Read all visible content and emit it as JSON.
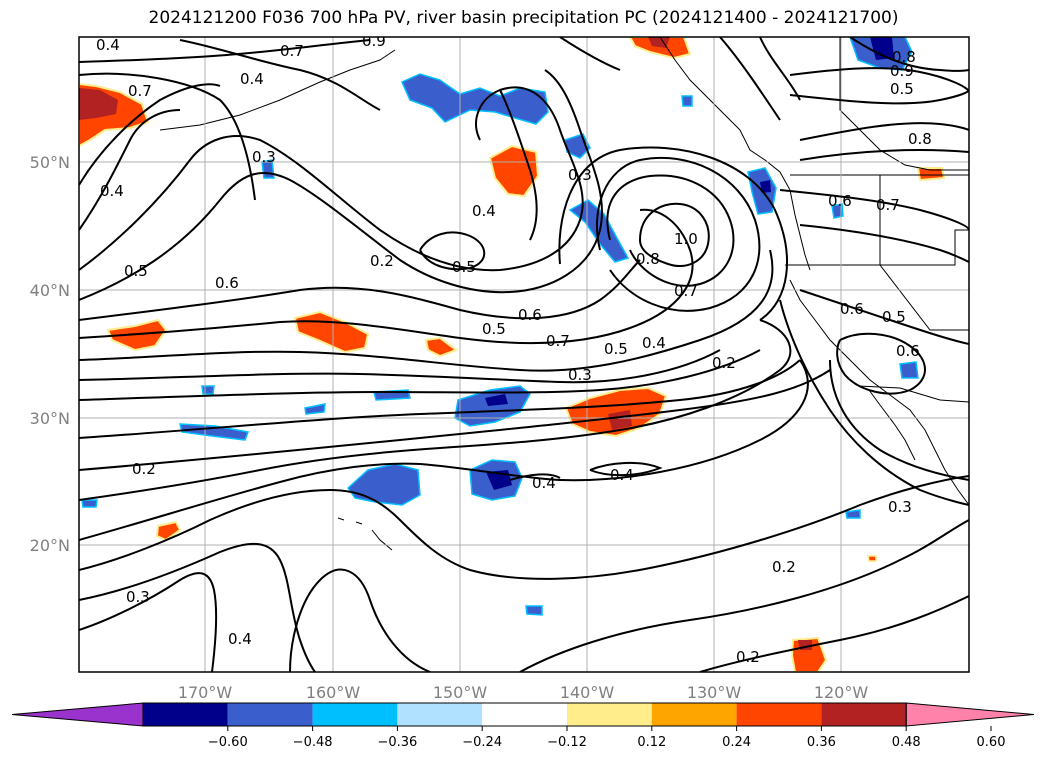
{
  "title": "2024121200 F036 700 hPa PV, river basin precipitation PC (2024121400 - 2024121700)",
  "x_ticks": [
    "170°W",
    "160°W",
    "150°W",
    "140°W",
    "130°W",
    "120°W"
  ],
  "y_ticks": [
    "50°N",
    "40°N",
    "30°N",
    "20°N"
  ],
  "colorbar": {
    "ticks": [
      "−0.60",
      "−0.48",
      "−0.36",
      "−0.24",
      "−0.12",
      "0.12",
      "0.24",
      "0.36",
      "0.48",
      "0.60"
    ],
    "colors": [
      "#9a32cd",
      "#00008b",
      "#3a5fcd",
      "#00bfff",
      "#b0e2ff",
      "#ffffff",
      "#ffec8b",
      "#ffa500",
      "#ff4500",
      "#b22222",
      "#ff82ab"
    ]
  },
  "contour_labels": [
    "0.4",
    "0.7",
    "0.9",
    "0.4",
    "0.3",
    "0.7",
    "0.4",
    "0.5",
    "0.2",
    "0.4",
    "0.5",
    "0.6",
    "0.3",
    "0.5",
    "0.6",
    "0.7",
    "0.5",
    "0.4",
    "0.3",
    "0.2",
    "0.8",
    "0.7",
    "1.0",
    "0.2",
    "0.4",
    "0.4",
    "0.3",
    "0.2",
    "0.2",
    "0.3",
    "0.4",
    "0.8",
    "0.5",
    "0.8",
    "0.9",
    "0.6",
    "0.7",
    "0.6",
    "0.5",
    "0.6"
  ],
  "colors": {
    "contour": "#000000",
    "grid": "#b0b0b0",
    "coast": "#000000"
  }
}
